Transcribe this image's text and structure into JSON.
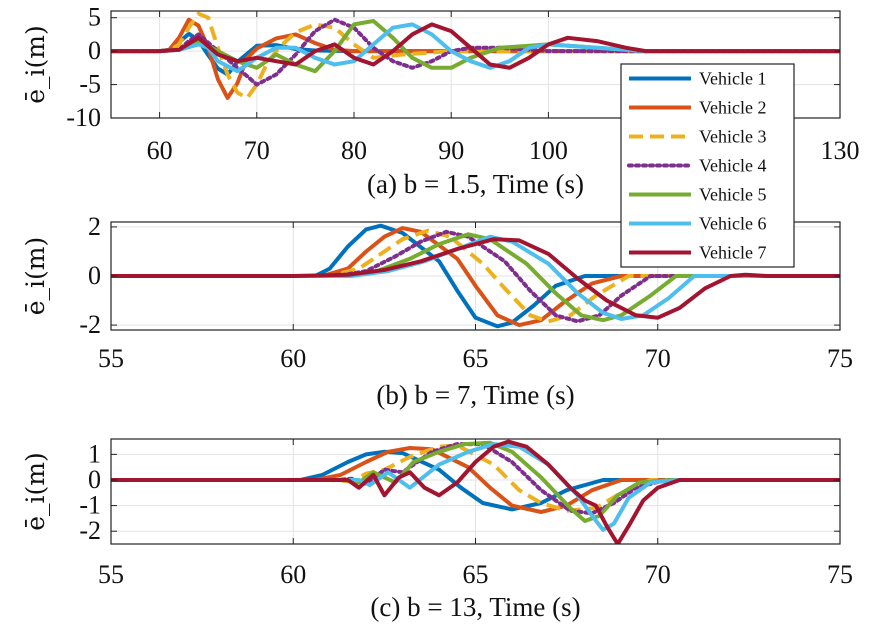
{
  "chart_data": [
    {
      "type": "line",
      "caption": "(a) b = 1.5, Time (s)",
      "ylabel": "ē_i(m)",
      "xlabel": "Time (s)",
      "xlim": [
        55,
        130
      ],
      "ylim": [
        -10,
        6
      ],
      "xticks": [
        60,
        70,
        80,
        90,
        100,
        130
      ],
      "xtick_labels": [
        "60",
        "70",
        "80",
        "90",
        "100",
        "130"
      ],
      "yticks": [
        5,
        0,
        -5,
        -10
      ],
      "ytick_labels": [
        "5",
        "0",
        "-5",
        "-10"
      ],
      "grid": true,
      "series": [
        {
          "name": "Vehicle 1",
          "x": [
            55,
            60,
            61,
            62,
            63,
            64,
            65,
            66,
            67,
            68,
            70,
            72,
            74,
            76,
            80,
            85,
            90,
            100,
            110,
            130
          ],
          "y": [
            0,
            0,
            0.2,
            1.3,
            2.6,
            1.6,
            -0.6,
            -2.6,
            -3.5,
            -1.6,
            0.8,
            0.9,
            0.3,
            0.1,
            0,
            0,
            0,
            0,
            0,
            0
          ]
        },
        {
          "name": "Vehicle 2",
          "x": [
            55,
            60,
            61,
            62,
            63,
            64,
            65,
            66,
            67,
            68,
            69,
            70,
            72,
            74,
            76,
            78,
            80,
            85,
            90,
            100,
            110,
            130
          ],
          "y": [
            0,
            0,
            0.2,
            2.0,
            4.7,
            3.8,
            0.5,
            -4.2,
            -7.0,
            -4.8,
            -1.0,
            0.4,
            1.9,
            2.5,
            1.2,
            0.2,
            0,
            0,
            0,
            0,
            0,
            0
          ]
        },
        {
          "name": "Vehicle 3",
          "x": [
            55,
            60,
            61,
            62,
            63,
            64,
            65,
            66,
            67,
            68,
            69,
            70,
            71,
            72,
            73,
            74,
            76,
            78,
            80,
            82,
            85,
            90,
            100,
            110,
            130
          ],
          "y": [
            0,
            0,
            0.1,
            1.0,
            3.5,
            5.6,
            5.0,
            0.5,
            -3.5,
            -6.2,
            -7.0,
            -5.0,
            -2.0,
            0,
            1.5,
            2.8,
            4.0,
            3.5,
            1.0,
            -1.0,
            -0.5,
            0,
            0,
            0,
            0
          ]
        },
        {
          "name": "Vehicle 4",
          "x": [
            55,
            60,
            62,
            63,
            64,
            66,
            68,
            70,
            72,
            74,
            76,
            78,
            80,
            82,
            84,
            86,
            88,
            90,
            92,
            95,
            100,
            110,
            130
          ],
          "y": [
            0,
            0,
            0.2,
            1.5,
            2.5,
            0,
            -2.5,
            -5.0,
            -3.5,
            -0.5,
            3.0,
            4.7,
            3.5,
            0.5,
            -1.5,
            -2.5,
            -1.5,
            0,
            0.5,
            0.5,
            0,
            0,
            0
          ]
        },
        {
          "name": "Vehicle 5",
          "x": [
            55,
            60,
            62,
            64,
            66,
            68,
            70,
            72,
            74,
            76,
            78,
            80,
            82,
            84,
            86,
            88,
            90,
            92,
            95,
            100,
            105,
            110,
            130
          ],
          "y": [
            0,
            0,
            0.2,
            1.5,
            0,
            -1.5,
            -2.5,
            -0.5,
            -2.0,
            -3.0,
            0,
            4.0,
            4.5,
            2.0,
            -1.0,
            -2.5,
            -2.5,
            -1.0,
            0.5,
            1.0,
            0.5,
            0,
            0
          ]
        },
        {
          "name": "Vehicle 6",
          "x": [
            55,
            60,
            62,
            64,
            65,
            66,
            68,
            70,
            72,
            74,
            76,
            78,
            80,
            82,
            84,
            86,
            88,
            90,
            92,
            94,
            96,
            98,
            100,
            105,
            110,
            130
          ],
          "y": [
            0,
            0,
            0.2,
            1.0,
            0.5,
            -1.5,
            -3.0,
            -1.0,
            0.5,
            0.5,
            -1.0,
            -2.0,
            -1.5,
            1.0,
            3.5,
            4.0,
            2.5,
            0,
            -1.5,
            -2.5,
            -1.5,
            0.5,
            1.0,
            0.5,
            0,
            0
          ]
        },
        {
          "name": "Vehicle 7",
          "x": [
            55,
            60,
            62,
            64,
            66,
            68,
            70,
            72,
            74,
            76,
            78,
            80,
            82,
            84,
            86,
            88,
            90,
            92,
            94,
            96,
            98,
            100,
            102,
            105,
            108,
            110,
            115,
            120,
            130
          ],
          "y": [
            0,
            0,
            0.2,
            2.0,
            -0.5,
            -1.5,
            -1.0,
            -1.5,
            -2.0,
            0,
            1.0,
            -1.0,
            -2.0,
            0,
            2.5,
            4.0,
            3.0,
            0.5,
            -2.0,
            -2.5,
            -1.0,
            1.0,
            2.0,
            1.5,
            0.5,
            0,
            0,
            0,
            0
          ]
        }
      ]
    },
    {
      "type": "line",
      "caption": "(b) b = 7, Time (s)",
      "ylabel": "ē_i(m)",
      "xlabel": "Time (s)",
      "xlim": [
        55,
        75
      ],
      "ylim": [
        -2.2,
        2.2
      ],
      "xticks": [
        55,
        60,
        65,
        70,
        75
      ],
      "xtick_labels": [
        "55",
        "60",
        "65",
        "70",
        "75"
      ],
      "yticks": [
        2,
        0,
        -2
      ],
      "ytick_labels": [
        "2",
        "0",
        "-2"
      ],
      "grid": true,
      "series": [
        {
          "name": "Vehicle 1",
          "x": [
            55,
            60.6,
            61.0,
            61.5,
            62.0,
            62.4,
            63.0,
            64.0,
            64.5,
            65.0,
            65.6,
            66.0,
            66.6,
            67.2,
            68.0,
            75
          ],
          "y": [
            0,
            0,
            0.3,
            1.2,
            1.9,
            2.05,
            1.75,
            0.6,
            -0.6,
            -1.7,
            -2.05,
            -1.9,
            -1.2,
            -0.4,
            0,
            0
          ]
        },
        {
          "name": "Vehicle 2",
          "x": [
            55,
            60.8,
            61.5,
            62.0,
            62.5,
            63.0,
            63.5,
            64.5,
            65.0,
            65.6,
            66.2,
            66.8,
            67.4,
            68.2,
            69.0,
            75
          ],
          "y": [
            0,
            0,
            0.3,
            1.0,
            1.6,
            1.95,
            1.8,
            0.7,
            -0.4,
            -1.6,
            -2.0,
            -1.8,
            -1.1,
            -0.3,
            0,
            0
          ]
        },
        {
          "name": "Vehicle 3",
          "x": [
            55,
            61.0,
            61.8,
            62.5,
            63.0,
            63.7,
            64.3,
            65.2,
            65.8,
            66.5,
            67.0,
            67.6,
            68.3,
            69.2,
            75
          ],
          "y": [
            0,
            0,
            0.3,
            1.0,
            1.5,
            1.85,
            1.6,
            0.5,
            -0.5,
            -1.6,
            -1.85,
            -1.6,
            -0.8,
            0,
            0
          ]
        },
        {
          "name": "Vehicle 4",
          "x": [
            55,
            61.2,
            62.0,
            62.8,
            63.5,
            64.2,
            64.8,
            65.8,
            66.5,
            67.2,
            67.8,
            68.4,
            69.0,
            69.8,
            75
          ],
          "y": [
            0,
            0,
            0.2,
            0.8,
            1.4,
            1.8,
            1.6,
            0.6,
            -0.6,
            -1.6,
            -1.85,
            -1.6,
            -0.8,
            0,
            0
          ]
        },
        {
          "name": "Vehicle 5",
          "x": [
            55,
            61.4,
            62.3,
            63.2,
            64.0,
            64.8,
            65.4,
            66.4,
            67.2,
            67.9,
            68.5,
            69.0,
            69.8,
            70.5,
            75
          ],
          "y": [
            0,
            0,
            0.2,
            0.7,
            1.3,
            1.7,
            1.5,
            0.5,
            -0.7,
            -1.6,
            -1.8,
            -1.6,
            -0.8,
            0,
            0
          ]
        },
        {
          "name": "Vehicle 6",
          "x": [
            55,
            61.6,
            62.6,
            63.6,
            64.5,
            65.4,
            66.0,
            67.0,
            67.8,
            68.5,
            69.0,
            69.6,
            70.3,
            71.0,
            75
          ],
          "y": [
            0,
            0,
            0.2,
            0.6,
            1.1,
            1.6,
            1.4,
            0.5,
            -0.7,
            -1.5,
            -1.75,
            -1.6,
            -0.9,
            0,
            0
          ]
        },
        {
          "name": "Vehicle 7",
          "x": [
            55,
            60,
            61.5,
            62.5,
            63.5,
            64.5,
            65.5,
            66.2,
            67.0,
            67.8,
            68.6,
            69.4,
            70.0,
            70.6,
            71.3,
            72.0,
            72.4,
            73.0,
            75
          ],
          "y": [
            0,
            0,
            0.05,
            0.25,
            0.6,
            1.1,
            1.5,
            1.45,
            0.9,
            -0.1,
            -1.0,
            -1.6,
            -1.7,
            -1.3,
            -0.5,
            0,
            0.05,
            0,
            0
          ]
        }
      ]
    },
    {
      "type": "line",
      "caption": "(c) b = 13, Time (s)",
      "ylabel": "ē_i(m)",
      "xlabel": "Time (s)",
      "xlim": [
        55,
        75
      ],
      "ylim": [
        -2.5,
        1.6
      ],
      "xticks": [
        55,
        60,
        65,
        70,
        75
      ],
      "xtick_labels": [
        "55",
        "60",
        "65",
        "70",
        "75"
      ],
      "yticks": [
        1,
        0,
        -1,
        -2
      ],
      "ytick_labels": [
        "1",
        "0",
        "-1",
        "-2"
      ],
      "grid": true,
      "series": [
        {
          "name": "Vehicle 1",
          "x": [
            55,
            60.2,
            60.8,
            61.5,
            62.0,
            62.5,
            63.0,
            64.0,
            64.6,
            65.2,
            66.0,
            66.8,
            67.5,
            68.5,
            75
          ],
          "y": [
            0,
            0,
            0.2,
            0.7,
            1.0,
            1.1,
            1.05,
            0.4,
            -0.3,
            -0.9,
            -1.15,
            -0.9,
            -0.4,
            0,
            0
          ]
        },
        {
          "name": "Vehicle 2",
          "x": [
            55,
            60.6,
            61.3,
            62.0,
            62.6,
            63.2,
            63.8,
            64.8,
            65.4,
            66.0,
            66.8,
            67.5,
            68.2,
            69.0,
            75
          ],
          "y": [
            0,
            0,
            0.2,
            0.7,
            1.1,
            1.25,
            1.2,
            0.5,
            -0.3,
            -1.0,
            -1.25,
            -1.0,
            -0.4,
            0,
            0
          ]
        },
        {
          "name": "Vehicle 3",
          "x": [
            55,
            61.0,
            61.6,
            62.0,
            62.5,
            63.2,
            64.0,
            64.5,
            65.5,
            66.2,
            66.8,
            67.5,
            68.3,
            69.0,
            69.8,
            75
          ],
          "y": [
            0,
            0,
            -0.05,
            0.25,
            0.4,
            0.9,
            1.3,
            1.35,
            0.6,
            -0.4,
            -0.9,
            -1.2,
            -1.1,
            -0.5,
            0,
            0
          ]
        },
        {
          "name": "Vehicle 4",
          "x": [
            55,
            61.2,
            61.6,
            62.0,
            62.5,
            63.0,
            63.8,
            64.5,
            65.2,
            66.0,
            66.8,
            67.6,
            68.2,
            68.8,
            69.4,
            70.2,
            75
          ],
          "y": [
            0,
            0,
            0.05,
            -0.15,
            0.4,
            0.3,
            1.1,
            1.4,
            1.4,
            0.7,
            -0.4,
            -1.2,
            -1.3,
            -0.9,
            -0.3,
            0,
            0
          ]
        },
        {
          "name": "Vehicle 5",
          "x": [
            55,
            61.4,
            61.8,
            62.2,
            62.8,
            63.3,
            64.0,
            64.7,
            65.4,
            66.0,
            66.8,
            67.6,
            68.0,
            68.4,
            68.9,
            69.5,
            70.4,
            75
          ],
          "y": [
            0,
            0,
            -0.1,
            0.3,
            -0.1,
            0.7,
            1.1,
            1.4,
            1.45,
            1.1,
            0.1,
            -1.1,
            -1.6,
            -1.4,
            -0.6,
            -0.1,
            0,
            0
          ]
        },
        {
          "name": "Vehicle 6",
          "x": [
            55,
            61.8,
            62.1,
            62.6,
            63.2,
            64.0,
            64.8,
            65.5,
            66.2,
            67.0,
            67.8,
            68.2,
            68.5,
            68.8,
            69.2,
            69.8,
            70.6,
            75
          ],
          "y": [
            0,
            0,
            -0.2,
            0.3,
            -0.3,
            0.6,
            1.1,
            1.4,
            1.3,
            0.6,
            -0.6,
            -1.4,
            -1.95,
            -1.7,
            -0.7,
            -0.1,
            0,
            0
          ]
        },
        {
          "name": "Vehicle 7",
          "x": [
            55,
            61.5,
            61.8,
            62.2,
            62.5,
            62.9,
            63.2,
            63.6,
            64.0,
            64.5,
            65.0,
            65.5,
            65.9,
            66.4,
            67.0,
            67.6,
            68.0,
            68.3,
            68.6,
            68.9,
            69.2,
            69.6,
            70.0,
            70.6,
            71.5,
            75
          ],
          "y": [
            0,
            0,
            -0.3,
            0.2,
            -0.6,
            0.1,
            0.3,
            -0.3,
            -0.6,
            -0.1,
            0.7,
            1.3,
            1.5,
            1.3,
            0.6,
            -0.3,
            -0.8,
            -1.0,
            -1.8,
            -2.5,
            -1.8,
            -0.8,
            -0.3,
            0,
            0,
            0
          ]
        }
      ]
    }
  ],
  "legend": {
    "placement": "top-right, overlapping panels a and b",
    "entries": [
      {
        "label": "Vehicle 1",
        "color": "#0072BD",
        "style": "solid"
      },
      {
        "label": "Vehicle 2",
        "color": "#D95319",
        "style": "solid"
      },
      {
        "label": "Vehicle 3",
        "color": "#EDB120",
        "style": "dashed"
      },
      {
        "label": "Vehicle 4",
        "color": "#7E2F8E",
        "style": "dotted"
      },
      {
        "label": "Vehicle 5",
        "color": "#77AC30",
        "style": "solid"
      },
      {
        "label": "Vehicle 6",
        "color": "#4DBEEE",
        "style": "solid"
      },
      {
        "label": "Vehicle 7",
        "color": "#A2142F",
        "style": "solid"
      }
    ]
  }
}
